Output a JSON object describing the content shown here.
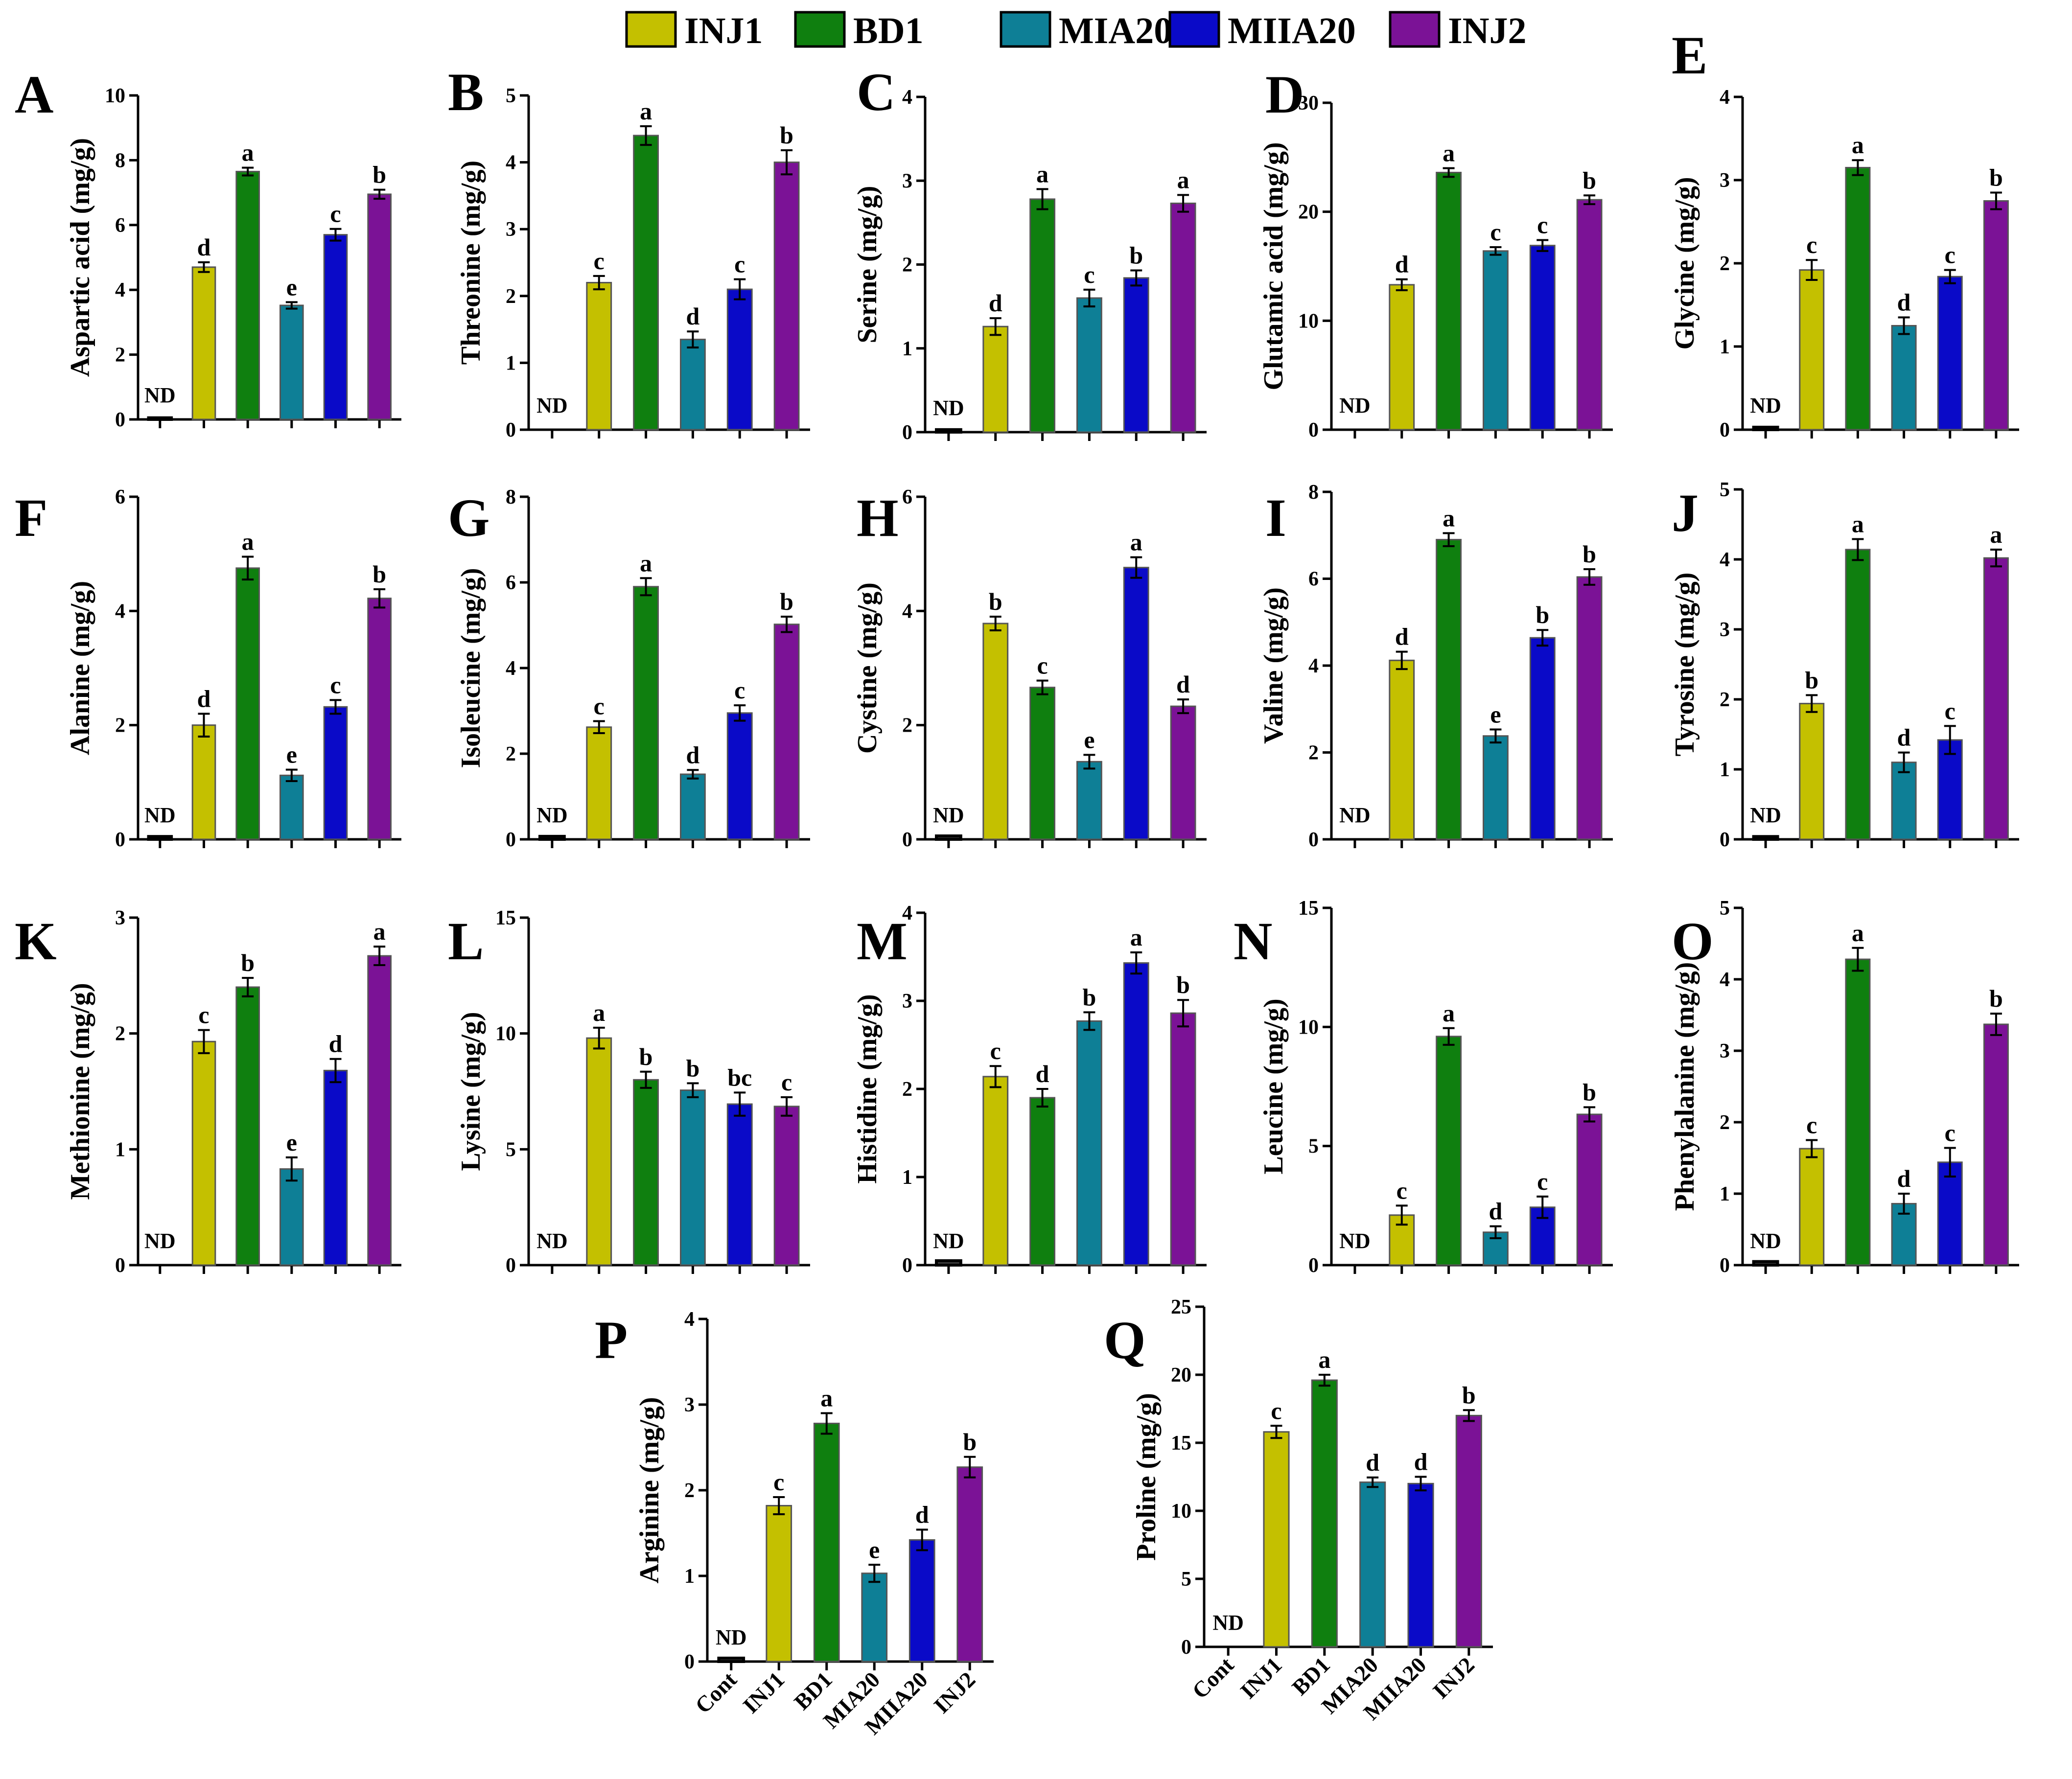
{
  "legend": {
    "items": [
      {
        "name": "INJ1",
        "color": "#c4c000"
      },
      {
        "name": "BD1",
        "color": "#0f7f0f"
      },
      {
        "name": "MIA20",
        "color": "#0e7f96"
      },
      {
        "name": "MIIA20",
        "color": "#0a0ac8"
      },
      {
        "name": "INJ2",
        "color": "#7b1296"
      }
    ]
  },
  "colors": {
    "Cont": "#3a3a3a",
    "INJ1": "#c4c000",
    "BD1": "#0f7f0f",
    "MIA20": "#0e7f96",
    "MIIA20": "#0a0ac8",
    "INJ2": "#7b1296"
  },
  "categories": [
    "Cont",
    "INJ1",
    "BD1",
    "MIA20",
    "MIIA20",
    "INJ2"
  ],
  "nd_label": "ND",
  "chart_data": [
    {
      "type": "bar",
      "panel": "A",
      "ylabel": "Aspartic acid (mg/g)",
      "ylim": [
        0,
        10
      ],
      "yticks": [
        0,
        2,
        4,
        6,
        8,
        10
      ],
      "categories": [
        "Cont",
        "INJ1",
        "BD1",
        "MIA20",
        "MIIA20",
        "INJ2"
      ],
      "values": [
        0.05,
        4.7,
        7.65,
        3.52,
        5.7,
        6.95
      ],
      "errors": [
        0,
        0.15,
        0.12,
        0.1,
        0.18,
        0.14
      ],
      "letters": [
        "ND",
        "d",
        "a",
        "e",
        "c",
        "b"
      ],
      "show_x_labels": false
    },
    {
      "type": "bar",
      "panel": "B",
      "ylabel": "Threonine (mg/g)",
      "ylim": [
        0,
        5
      ],
      "yticks": [
        0,
        1,
        2,
        3,
        4,
        5
      ],
      "categories": [
        "Cont",
        "INJ1",
        "BD1",
        "MIA20",
        "MIIA20",
        "INJ2"
      ],
      "values": [
        0.0,
        2.2,
        4.4,
        1.35,
        2.1,
        4.0
      ],
      "errors": [
        0,
        0.1,
        0.14,
        0.12,
        0.15,
        0.18
      ],
      "letters": [
        "ND",
        "c",
        "a",
        "d",
        "c",
        "b"
      ],
      "show_x_labels": false
    },
    {
      "type": "bar",
      "panel": "C",
      "ylabel": "Serine (mg/g)",
      "ylim": [
        0,
        4
      ],
      "yticks": [
        0,
        1,
        2,
        3,
        4
      ],
      "categories": [
        "Cont",
        "INJ1",
        "BD1",
        "MIA20",
        "MIIA20",
        "INJ2"
      ],
      "values": [
        0.03,
        1.26,
        2.78,
        1.6,
        1.84,
        2.73
      ],
      "errors": [
        0,
        0.1,
        0.12,
        0.1,
        0.09,
        0.1
      ],
      "letters": [
        "ND",
        "d",
        "a",
        "c",
        "b",
        "a"
      ],
      "show_x_labels": false
    },
    {
      "type": "bar",
      "panel": "D",
      "ylabel": "Glutamic acid (mg/g)",
      "ylim": [
        0,
        30
      ],
      "yticks": [
        0,
        10,
        20,
        30
      ],
      "categories": [
        "Cont",
        "INJ1",
        "BD1",
        "MIA20",
        "MIIA20",
        "INJ2"
      ],
      "values": [
        0.0,
        13.3,
        23.6,
        16.4,
        16.9,
        21.1
      ],
      "errors": [
        0,
        0.5,
        0.4,
        0.35,
        0.5,
        0.4
      ],
      "letters": [
        "ND",
        "d",
        "a",
        "c",
        "c",
        "b"
      ],
      "show_x_labels": false
    },
    {
      "type": "bar",
      "panel": "E",
      "ylabel": "Glycine (mg/g)",
      "ylim": [
        0,
        4
      ],
      "yticks": [
        0,
        1,
        2,
        3,
        4
      ],
      "categories": [
        "Cont",
        "INJ1",
        "BD1",
        "MIA20",
        "MIIA20",
        "INJ2"
      ],
      "values": [
        0.03,
        1.92,
        3.15,
        1.25,
        1.84,
        2.75
      ],
      "errors": [
        0,
        0.12,
        0.09,
        0.1,
        0.08,
        0.1
      ],
      "letters": [
        "ND",
        "c",
        "a",
        "d",
        "c",
        "b"
      ],
      "show_x_labels": false
    },
    {
      "type": "bar",
      "panel": "F",
      "ylabel": "Alanine (mg/g)",
      "ylim": [
        0,
        6
      ],
      "yticks": [
        0,
        2,
        4,
        6
      ],
      "categories": [
        "Cont",
        "INJ1",
        "BD1",
        "MIA20",
        "MIIA20",
        "INJ2"
      ],
      "values": [
        0.05,
        2.0,
        4.75,
        1.12,
        2.32,
        4.22
      ],
      "errors": [
        0,
        0.2,
        0.2,
        0.1,
        0.12,
        0.16
      ],
      "letters": [
        "ND",
        "d",
        "a",
        "e",
        "c",
        "b"
      ],
      "show_x_labels": false
    },
    {
      "type": "bar",
      "panel": "G",
      "ylabel": "Isoleucine (mg/g)",
      "ylim": [
        0,
        8
      ],
      "yticks": [
        0,
        2,
        4,
        6,
        8
      ],
      "categories": [
        "Cont",
        "INJ1",
        "BD1",
        "MIA20",
        "MIIA20",
        "INJ2"
      ],
      "values": [
        0.07,
        2.62,
        5.9,
        1.52,
        2.95,
        5.02
      ],
      "errors": [
        0,
        0.14,
        0.2,
        0.1,
        0.18,
        0.18
      ],
      "letters": [
        "ND",
        "c",
        "a",
        "d",
        "c",
        "b"
      ],
      "show_x_labels": false
    },
    {
      "type": "bar",
      "panel": "H",
      "ylabel": "Cystine (mg/g)",
      "ylim": [
        0,
        6
      ],
      "yticks": [
        0,
        2,
        4,
        6
      ],
      "categories": [
        "Cont",
        "INJ1",
        "BD1",
        "MIA20",
        "MIIA20",
        "INJ2"
      ],
      "values": [
        0.06,
        3.78,
        2.66,
        1.36,
        4.76,
        2.33
      ],
      "errors": [
        0,
        0.12,
        0.12,
        0.12,
        0.18,
        0.12
      ],
      "letters": [
        "ND",
        "b",
        "c",
        "e",
        "a",
        "d"
      ],
      "show_x_labels": false
    },
    {
      "type": "bar",
      "panel": "I",
      "ylabel": "Valine (mg/g)",
      "ylim": [
        0,
        8
      ],
      "yticks": [
        0,
        2,
        4,
        6,
        8
      ],
      "categories": [
        "Cont",
        "INJ1",
        "BD1",
        "MIA20",
        "MIIA20",
        "INJ2"
      ],
      "values": [
        0.0,
        4.12,
        6.9,
        2.38,
        4.64,
        6.04
      ],
      "errors": [
        0,
        0.2,
        0.15,
        0.15,
        0.18,
        0.18
      ],
      "letters": [
        "ND",
        "d",
        "a",
        "e",
        "b",
        "b"
      ],
      "show_x_labels": false
    },
    {
      "type": "bar",
      "panel": "J",
      "ylabel": "Tyrosine (mg/g)",
      "ylim": [
        0,
        5
      ],
      "yticks": [
        0,
        1,
        2,
        3,
        4,
        5
      ],
      "categories": [
        "Cont",
        "INJ1",
        "BD1",
        "MIA20",
        "MIIA20",
        "INJ2"
      ],
      "values": [
        0.04,
        1.94,
        4.14,
        1.1,
        1.42,
        4.02
      ],
      "errors": [
        0,
        0.12,
        0.15,
        0.14,
        0.2,
        0.12
      ],
      "letters": [
        "ND",
        "b",
        "a",
        "d",
        "c",
        "a"
      ],
      "show_x_labels": false
    },
    {
      "type": "bar",
      "panel": "K",
      "ylabel": "Methionine (mg/g)",
      "ylim": [
        0,
        3
      ],
      "yticks": [
        0,
        1,
        2,
        3
      ],
      "categories": [
        "Cont",
        "INJ1",
        "BD1",
        "MIA20",
        "MIIA20",
        "INJ2"
      ],
      "values": [
        0.0,
        1.93,
        2.4,
        0.83,
        1.68,
        2.67
      ],
      "errors": [
        0,
        0.1,
        0.08,
        0.1,
        0.1,
        0.08
      ],
      "letters": [
        "ND",
        "c",
        "b",
        "e",
        "d",
        "a"
      ],
      "show_x_labels": false
    },
    {
      "type": "bar",
      "panel": "L",
      "ylabel": "Lysine (mg/g)",
      "ylim": [
        0,
        15
      ],
      "yticks": [
        0,
        5,
        10,
        15
      ],
      "categories": [
        "Cont",
        "INJ1",
        "BD1",
        "MIA20",
        "MIIA20",
        "INJ2"
      ],
      "values": [
        0.0,
        9.8,
        8.0,
        7.55,
        6.95,
        6.85
      ],
      "errors": [
        0,
        0.45,
        0.35,
        0.3,
        0.5,
        0.4
      ],
      "letters": [
        "ND",
        "a",
        "b",
        "b",
        "bc",
        "c"
      ],
      "show_x_labels": false
    },
    {
      "type": "bar",
      "panel": "M",
      "ylabel": "Histidine (mg/g)",
      "ylim": [
        0,
        4
      ],
      "yticks": [
        0,
        1,
        2,
        3,
        4
      ],
      "categories": [
        "Cont",
        "INJ1",
        "BD1",
        "MIA20",
        "MIIA20",
        "INJ2"
      ],
      "values": [
        0.05,
        2.14,
        1.9,
        2.77,
        3.43,
        2.86
      ],
      "errors": [
        0,
        0.12,
        0.1,
        0.1,
        0.12,
        0.15
      ],
      "letters": [
        "ND",
        "c",
        "d",
        "b",
        "a",
        "b"
      ],
      "show_x_labels": false
    },
    {
      "type": "bar",
      "panel": "N",
      "ylabel": "Leucine (mg/g)",
      "ylim": [
        0,
        15
      ],
      "yticks": [
        0,
        5,
        10,
        15
      ],
      "categories": [
        "Cont",
        "INJ1",
        "BD1",
        "MIA20",
        "MIIA20",
        "INJ2"
      ],
      "values": [
        0.0,
        2.1,
        9.6,
        1.38,
        2.43,
        6.33
      ],
      "errors": [
        0,
        0.4,
        0.35,
        0.25,
        0.45,
        0.3
      ],
      "letters": [
        "ND",
        "c",
        "a",
        "d",
        "c",
        "b"
      ],
      "show_x_labels": false
    },
    {
      "type": "bar",
      "panel": "O",
      "ylabel": "Phenylalanine (mg/g)",
      "ylim": [
        0,
        5
      ],
      "yticks": [
        0,
        1,
        2,
        3,
        4,
        5
      ],
      "categories": [
        "Cont",
        "INJ1",
        "BD1",
        "MIA20",
        "MIIA20",
        "INJ2"
      ],
      "values": [
        0.05,
        1.63,
        4.28,
        0.86,
        1.44,
        3.37
      ],
      "errors": [
        0,
        0.12,
        0.16,
        0.14,
        0.2,
        0.15
      ],
      "letters": [
        "ND",
        "c",
        "a",
        "d",
        "c",
        "b"
      ],
      "show_x_labels": false
    },
    {
      "type": "bar",
      "panel": "P",
      "ylabel": "Arginine (mg/g)",
      "ylim": [
        0,
        4
      ],
      "yticks": [
        0,
        1,
        2,
        3,
        4
      ],
      "categories": [
        "Cont",
        "INJ1",
        "BD1",
        "MIA20",
        "MIIA20",
        "INJ2"
      ],
      "values": [
        0.04,
        1.82,
        2.78,
        1.03,
        1.42,
        2.27
      ],
      "errors": [
        0,
        0.1,
        0.12,
        0.1,
        0.12,
        0.12
      ],
      "letters": [
        "ND",
        "c",
        "a",
        "e",
        "d",
        "b"
      ],
      "show_x_labels": true
    },
    {
      "type": "bar",
      "panel": "Q",
      "ylabel": "Proline (mg/g)",
      "ylim": [
        0,
        25
      ],
      "yticks": [
        0,
        5,
        10,
        15,
        20,
        25
      ],
      "categories": [
        "Cont",
        "INJ1",
        "BD1",
        "MIA20",
        "MIIA20",
        "INJ2"
      ],
      "values": [
        0.0,
        15.8,
        19.6,
        12.1,
        12.0,
        17.0
      ],
      "errors": [
        0,
        0.45,
        0.4,
        0.35,
        0.5,
        0.4
      ],
      "letters": [
        "ND",
        "c",
        "a",
        "d",
        "d",
        "b"
      ],
      "show_x_labels": true
    }
  ]
}
